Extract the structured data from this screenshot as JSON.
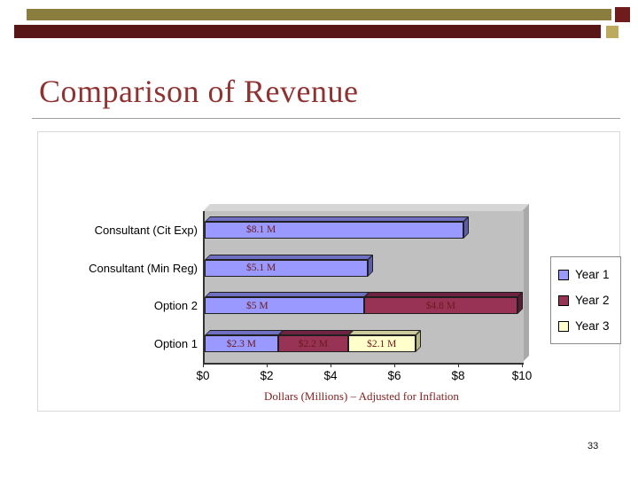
{
  "title": "Comparison of Revenue",
  "page_number": "33",
  "colors": {
    "title_color": "#8e3331",
    "caption_color": "#7f1f1f",
    "bar_label": "#6b1a1a",
    "deco_gold": "#8a7d3e",
    "deco_maroon": "#591616",
    "sq_maroon": "#701c1c",
    "sq_tan": "#bcab5e",
    "plot_bg": "#c0c0c0"
  },
  "chart_data": {
    "type": "bar",
    "orientation": "horizontal",
    "stacked": true,
    "title": "",
    "categories": [
      "Consultant (Cit Exp)",
      "Consultant (Min Reg)",
      "Option 2",
      "Option 1"
    ],
    "series": [
      {
        "name": "Year 1",
        "color": "#9999ff",
        "color_top": "#6f6fc2",
        "color_cap": "#5d5daa",
        "values": [
          8.1,
          5.1,
          5.0,
          2.3
        ],
        "labels": [
          "$8.1 M",
          "$5.1 M",
          "$5 M",
          "$2.3 M"
        ]
      },
      {
        "name": "Year 2",
        "color": "#993355",
        "color_top": "#6e2340",
        "color_cap": "#5a1c34",
        "values": [
          null,
          null,
          4.8,
          2.2
        ],
        "labels": [
          null,
          null,
          "$4.8 M",
          "$2.2 M"
        ]
      },
      {
        "name": "Year 3",
        "color": "#ffffcc",
        "color_top": "#cbcb9b",
        "color_cap": "#b8b886",
        "values": [
          null,
          null,
          null,
          2.1
        ],
        "labels": [
          null,
          null,
          null,
          "$2.1 M"
        ]
      }
    ],
    "x_ticks": [
      "$0",
      "$2",
      "$4",
      "$6",
      "$8",
      "$10"
    ],
    "xlim": [
      0,
      10
    ],
    "xlabel": "Dollars (Millions) – Adjusted for Inflation",
    "legend_position": "right",
    "grid": false
  }
}
